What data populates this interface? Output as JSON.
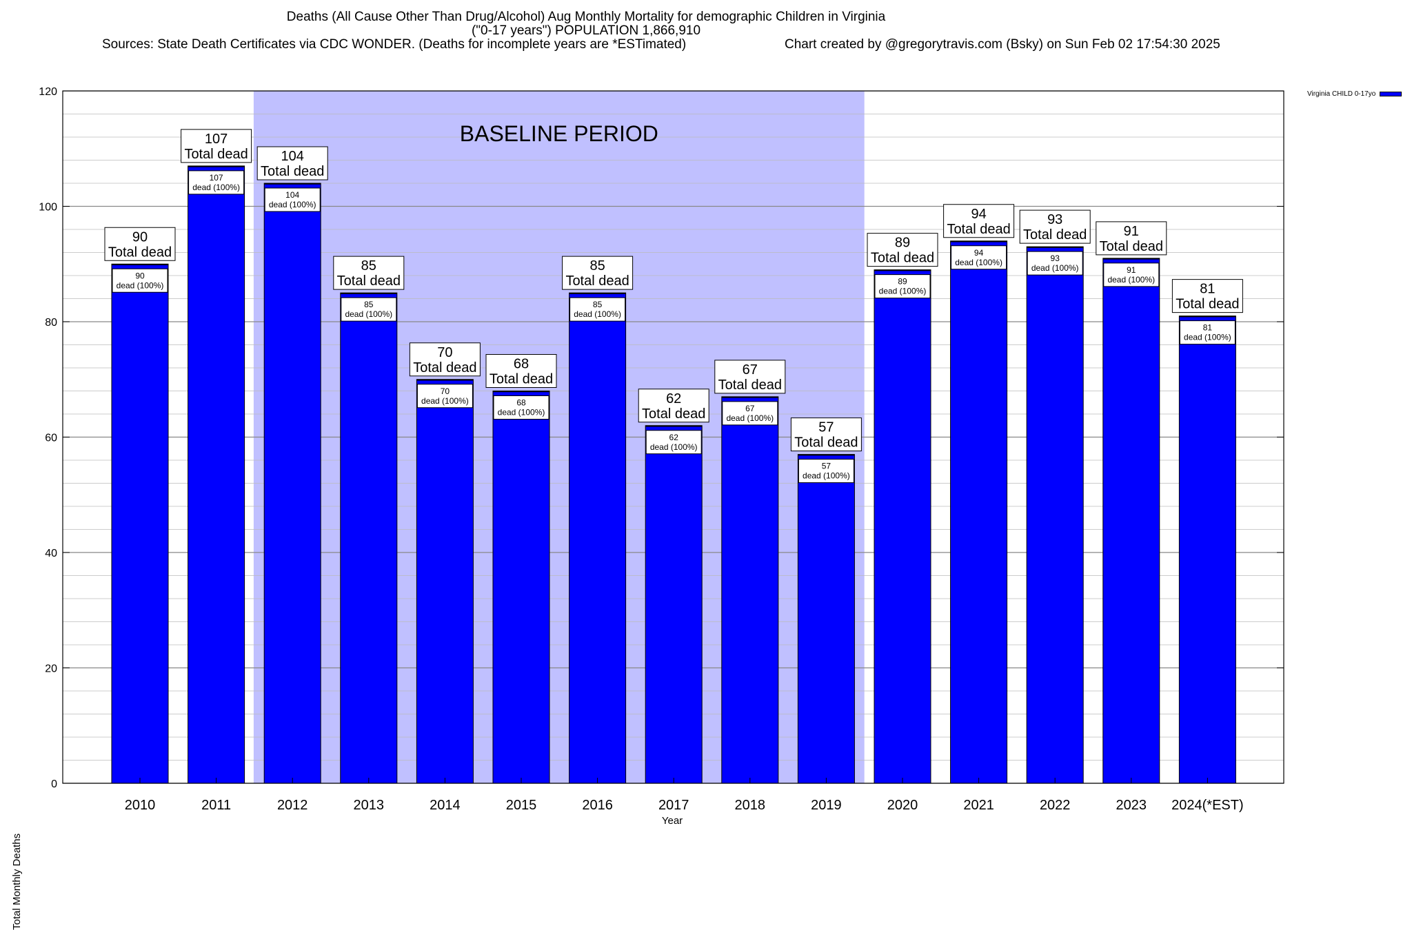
{
  "chart_data": {
    "type": "bar",
    "title": "Deaths (All Cause Other Than Drug/Alcohol) Aug Monthly Mortality for demographic Children in Virginia",
    "subtitle": "(\"0-17 years\") POPULATION 1,866,910",
    "sources": "Sources: State Death Certificates via CDC WONDER. (Deaths for incomplete years are *ESTimated)",
    "credit": "Chart created by @gregorytravis.com (Bsky) on Sun Feb 02 17:54:30 2025",
    "xlabel": "Year",
    "ylabel": "Total Monthly Deaths",
    "ylim": [
      0,
      120
    ],
    "yticks": [
      0,
      20,
      40,
      60,
      80,
      100,
      120
    ],
    "grid": true,
    "legend_position": "top-right",
    "categories": [
      "2010",
      "2011",
      "2012",
      "2013",
      "2014",
      "2015",
      "2016",
      "2017",
      "2018",
      "2019",
      "2020",
      "2021",
      "2022",
      "2023",
      "2024(*EST)"
    ],
    "series": [
      {
        "name": "Virginia CHILD 0-17yo",
        "color": "#0000ff",
        "values": [
          90,
          107,
          104,
          85,
          70,
          68,
          85,
          62,
          67,
          57,
          89,
          94,
          93,
          91,
          81
        ]
      }
    ],
    "total_label_suffix": "Total dead",
    "inner_label_suffix": "dead (100%)",
    "baseline": {
      "label": "BASELINE PERIOD",
      "start_category": "2012",
      "end_category": "2019",
      "color": "#c0c0ff"
    }
  }
}
